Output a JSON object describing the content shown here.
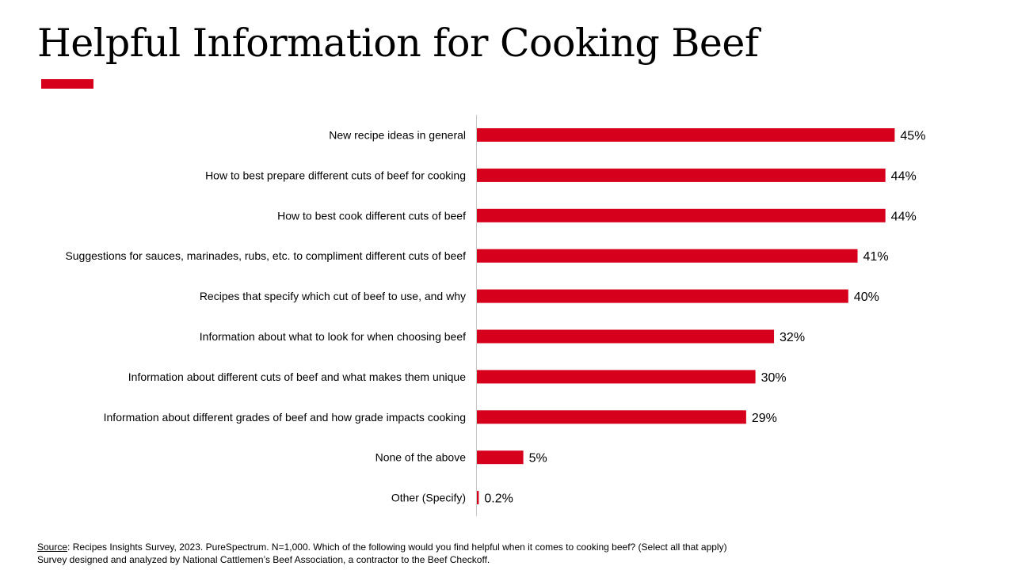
{
  "title": "Helpful Information for Cooking Beef",
  "colors": {
    "bar": "#d6001c",
    "accent": "#d6001c",
    "axis": "#c8c8c8"
  },
  "chart_data": {
    "type": "bar",
    "orientation": "horizontal",
    "categories": [
      "New recipe ideas in general",
      "How to best prepare different cuts of beef for cooking",
      "How to best cook different cuts of beef",
      "Suggestions for sauces, marinades, rubs, etc. to compliment different cuts of beef",
      "Recipes that specify which cut of beef to use, and why",
      "Information about what to look for when choosing beef",
      "Information about different cuts of beef and what makes them unique",
      "Information about different grades of beef and how grade impacts cooking",
      "None of the above",
      "Other (Specify)"
    ],
    "values": [
      45,
      44,
      44,
      41,
      40,
      32,
      30,
      29,
      5,
      0.2
    ],
    "labels": [
      "45%",
      "44%",
      "44%",
      "41%",
      "40%",
      "32%",
      "30%",
      "29%",
      "5%",
      "0.2%"
    ],
    "unit": "%",
    "xlim": [
      0,
      50
    ],
    "grid": false,
    "legend": "none"
  },
  "footer": {
    "source_label": "Source",
    "source_text": ": Recipes Insights  Survey, 2023.  PureSpectrum.  N=1,000.  Which  of  the  following  would  you  find  helpful  when  it  comes  to  cooking  beef? (Select all that apply)",
    "credit": "Survey designed  and  analyzed  by  National  Cattlemen’s  Beef  Association,  a  contractor  to  the  Beef  Checkoff."
  }
}
